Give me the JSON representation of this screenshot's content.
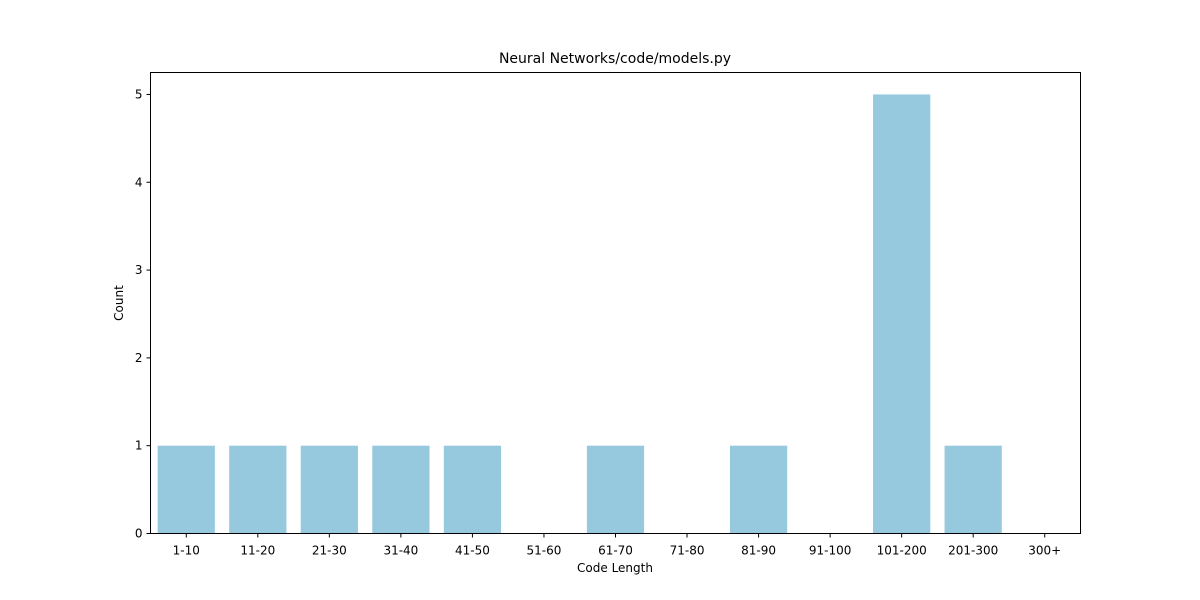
{
  "chart_data": {
    "type": "bar",
    "title": "Neural Networks/code/models.py",
    "xlabel": "Code Length",
    "ylabel": "Count",
    "categories": [
      "1-10",
      "11-20",
      "21-30",
      "31-40",
      "41-50",
      "51-60",
      "61-70",
      "71-80",
      "81-90",
      "91-100",
      "101-200",
      "201-300",
      "300+"
    ],
    "values": [
      1,
      1,
      1,
      1,
      1,
      0,
      1,
      0,
      1,
      0,
      5,
      1,
      0
    ],
    "ylim": [
      0,
      5.25
    ],
    "yticks": [
      0,
      1,
      2,
      3,
      4,
      5
    ],
    "grid": false,
    "legend": "none",
    "bar_color": "#96c9de"
  }
}
